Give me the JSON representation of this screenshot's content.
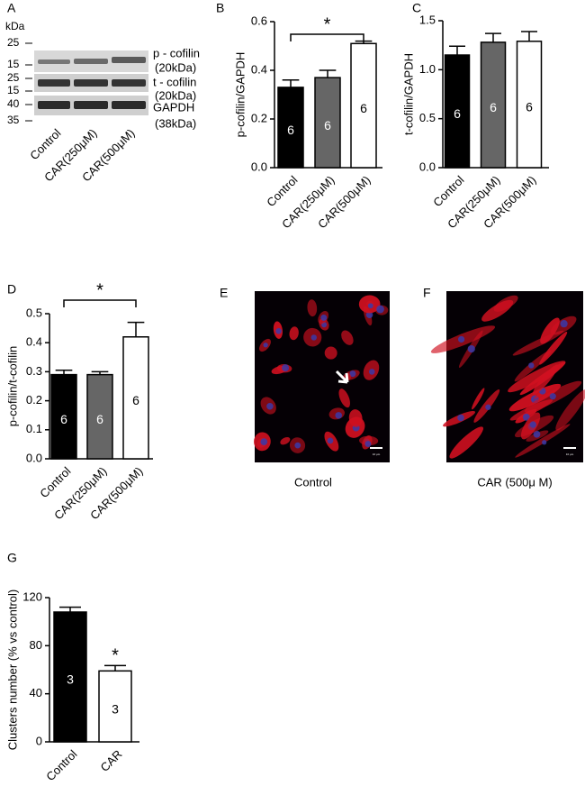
{
  "panels": {
    "A": {
      "letter": "A",
      "unit": "kDa",
      "markers": [
        "25",
        "15",
        "25",
        "15",
        "40",
        "35"
      ],
      "bands": [
        "p - cofilin",
        "(20kDa)",
        "t - cofilin",
        "(20kDa)",
        "GAPDH",
        "(38kDa)"
      ],
      "lanes": [
        "Control",
        "CAR(250μM)",
        "CAR(500μM)"
      ]
    },
    "E": {
      "letter": "E",
      "caption": "Control",
      "scale": "10 μm"
    },
    "F": {
      "letter": "F",
      "caption": "CAR (500μ M)",
      "scale": "10 μm"
    }
  },
  "chart_data": [
    {
      "type": "bar",
      "panel": "B",
      "ylabel": "p-cofilin/GAPDH",
      "categories": [
        "Control",
        "CAR(250μM)",
        "CAR(500μM)"
      ],
      "values": [
        0.33,
        0.37,
        0.51
      ],
      "errors": [
        0.03,
        0.03,
        0.01
      ],
      "value_labels": [
        "6",
        "6",
        "6"
      ],
      "colors": [
        "#000000",
        "#666666",
        "#ffffff"
      ],
      "ylim": [
        0,
        0.6
      ],
      "yticks": [
        {
          "value": 0,
          "label": "0.0"
        },
        0.2,
        0.4,
        0.6
      ],
      "annotation": "*"
    },
    {
      "type": "bar",
      "panel": "C",
      "ylabel": "t-cofilin/GAPDH",
      "categories": [
        "Control",
        "CAR(250μM)",
        "CAR(500μM)"
      ],
      "values": [
        1.15,
        1.28,
        1.29
      ],
      "errors": [
        0.09,
        0.09,
        0.1
      ],
      "value_labels": [
        "6",
        "6",
        "6"
      ],
      "colors": [
        "#000000",
        "#666666",
        "#ffffff"
      ],
      "ylim": [
        0,
        1.5
      ],
      "yticks": [
        {
          "value": 0,
          "label": "0.0"
        },
        0.5,
        {
          "value": 1,
          "label": "1.0"
        },
        1.5
      ]
    },
    {
      "type": "bar",
      "panel": "D",
      "ylabel": "p-cofilin/t-cofilin",
      "categories": [
        "Control",
        "CAR(250μM)",
        "CAR(500μM)"
      ],
      "values": [
        0.29,
        0.29,
        0.42
      ],
      "errors": [
        0.015,
        0.01,
        0.05
      ],
      "value_labels": [
        "6",
        "6",
        "6"
      ],
      "colors": [
        "#000000",
        "#666666",
        "#ffffff"
      ],
      "ylim": [
        0,
        0.5
      ],
      "yticks": [
        {
          "value": 0,
          "label": "0.0"
        },
        0.1,
        0.2,
        0.3,
        0.4,
        0.5
      ],
      "annotation": "*"
    },
    {
      "type": "bar",
      "panel": "G",
      "ylabel": "Clusters  number (% vs control)",
      "categories": [
        "Control",
        "CAR"
      ],
      "values": [
        108,
        59
      ],
      "errors": [
        4,
        4.5
      ],
      "value_labels": [
        "3",
        "3"
      ],
      "colors": [
        "#000000",
        "#ffffff"
      ],
      "ylim": [
        0,
        120
      ],
      "yticks": [
        0,
        40,
        80,
        120
      ],
      "annotation": "*"
    }
  ]
}
